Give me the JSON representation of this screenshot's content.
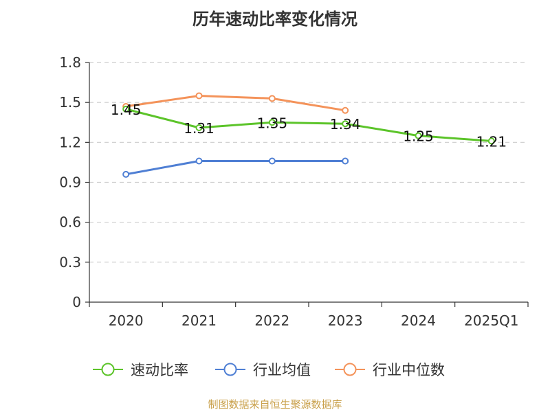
{
  "chart_data": {
    "type": "line",
    "title": "历年速动比率变化情况",
    "categories": [
      "2020",
      "2021",
      "2022",
      "2023",
      "2024",
      "2025Q1"
    ],
    "ylim": [
      0,
      1.8
    ],
    "yticks": [
      "0",
      "0.3",
      "0.6",
      "0.9",
      "1.2",
      "1.5",
      "1.8"
    ],
    "grid": true,
    "legend_position": "bottom",
    "series": [
      {
        "name": "速动比率",
        "color": "#5cc42a",
        "values": [
          1.45,
          1.31,
          1.35,
          1.34,
          1.25,
          1.21
        ],
        "labels": [
          "1.45",
          "1.31",
          "1.35",
          "1.34",
          "1.25",
          "1.21"
        ]
      },
      {
        "name": "行业均值",
        "color": "#4f7fd4",
        "values": [
          0.96,
          1.06,
          1.06,
          1.06,
          null,
          null
        ]
      },
      {
        "name": "行业中位数",
        "color": "#f4935a",
        "values": [
          1.47,
          1.55,
          1.53,
          1.44,
          null,
          null
        ]
      }
    ]
  },
  "source": "制图数据来自恒生聚源数据库"
}
